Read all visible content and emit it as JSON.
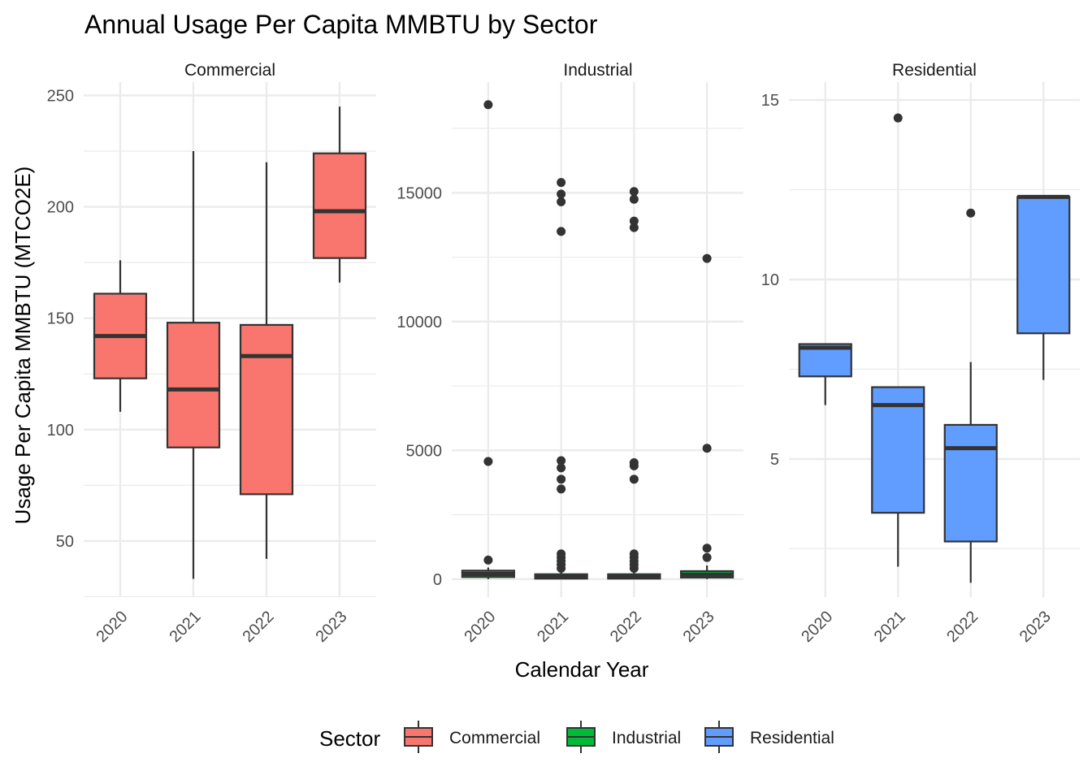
{
  "chart_data": {
    "type": "boxplot",
    "title": "Annual Usage Per Capita MMBTU by Sector",
    "xlabel": "Calendar Year",
    "ylabel": "Usage Per Capita MMBTU (MTCO2E)",
    "categories": [
      "2020",
      "2021",
      "2022",
      "2023"
    ],
    "legend": {
      "title": "Sector",
      "position": "bottom",
      "entries": [
        {
          "name": "Commercial",
          "color": "#F8766D"
        },
        {
          "name": "Industrial",
          "color": "#00BA38"
        },
        {
          "name": "Residential",
          "color": "#619CFF"
        }
      ]
    },
    "grid": true,
    "panels": [
      {
        "name": "Commercial",
        "color": "#F8766D",
        "ylim": [
          24.8,
          256
        ],
        "yticks": [
          50,
          100,
          150,
          200,
          250
        ],
        "boxes": [
          {
            "x": "2020",
            "min": 108,
            "q1": 123,
            "median": 142,
            "q3": 161,
            "max": 176,
            "outliers": []
          },
          {
            "x": "2021",
            "min": 33,
            "q1": 92,
            "median": 118,
            "q3": 148,
            "max": 225,
            "outliers": []
          },
          {
            "x": "2022",
            "min": 42,
            "q1": 71,
            "median": 133,
            "q3": 147,
            "max": 220,
            "outliers": []
          },
          {
            "x": "2023",
            "min": 166,
            "q1": 177,
            "median": 198,
            "q3": 224,
            "max": 245,
            "outliers": []
          }
        ]
      },
      {
        "name": "Industrial",
        "color": "#00BA38",
        "ylim": [
          -700,
          19300
        ],
        "yticks": [
          0,
          5000,
          10000,
          15000
        ],
        "boxes": [
          {
            "x": "2020",
            "min": 0,
            "q1": 80,
            "median": 200,
            "q3": 330,
            "max": 450,
            "outliers": [
              740,
              4570,
              18420
            ]
          },
          {
            "x": "2021",
            "min": 0,
            "q1": 20,
            "median": 80,
            "q3": 190,
            "max": 390,
            "outliers": [
              420,
              560,
              700,
              840,
              980,
              3500,
              3880,
              4320,
              4600,
              13500,
              14650,
              14950,
              15400
            ]
          },
          {
            "x": "2022",
            "min": 0,
            "q1": 20,
            "median": 80,
            "q3": 190,
            "max": 390,
            "outliers": [
              420,
              560,
              700,
              840,
              980,
              3880,
              4400,
              4520,
              13650,
              13900,
              14750,
              15050
            ]
          },
          {
            "x": "2023",
            "min": 0,
            "q1": 60,
            "median": 170,
            "q3": 310,
            "max": 530,
            "outliers": [
              840,
              1200,
              5080,
              12450
            ]
          }
        ]
      },
      {
        "name": "Residential",
        "color": "#619CFF",
        "ylim": [
          1.15,
          15.5
        ],
        "yticks": [
          5,
          10,
          15
        ],
        "boxes": [
          {
            "x": "2020",
            "min": 6.5,
            "q1": 7.3,
            "median": 8.1,
            "q3": 8.2,
            "max": 8.2,
            "outliers": []
          },
          {
            "x": "2021",
            "min": 2.0,
            "q1": 3.5,
            "median": 6.5,
            "q3": 7.0,
            "max": 7.0,
            "outliers": [
              14.5
            ]
          },
          {
            "x": "2022",
            "min": 1.55,
            "q1": 2.7,
            "median": 5.3,
            "q3": 5.95,
            "max": 7.7,
            "outliers": [
              11.85
            ]
          },
          {
            "x": "2023",
            "min": 7.2,
            "q1": 8.5,
            "median": 12.3,
            "q3": 12.3,
            "max": 12.3,
            "outliers": []
          }
        ]
      }
    ]
  }
}
